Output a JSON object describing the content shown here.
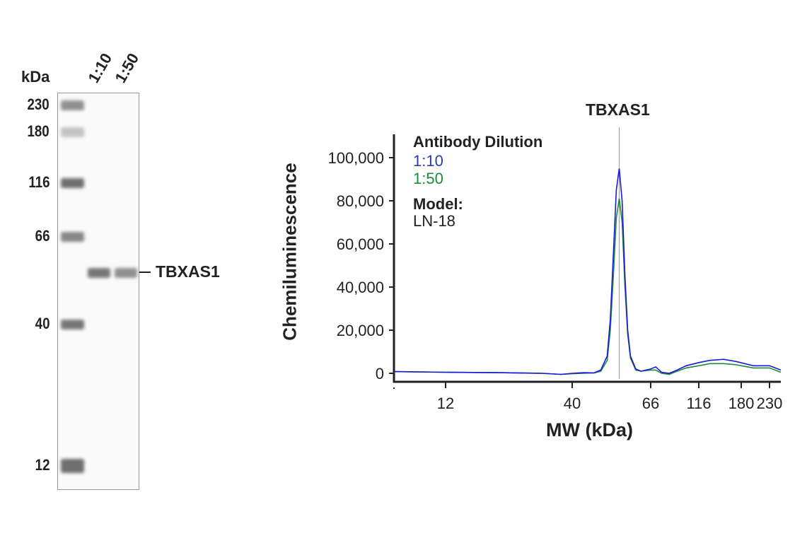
{
  "blot": {
    "unit_label": "kDa",
    "lane_labels": [
      "1:10",
      "1:50"
    ],
    "target_label": "TBXAS1",
    "markers": [
      {
        "label": "230",
        "kda": 230,
        "intensity": 0.65
      },
      {
        "label": "180",
        "kda": 180,
        "intensity": 0.35
      },
      {
        "label": "116",
        "kda": 116,
        "intensity": 0.85
      },
      {
        "label": "66",
        "kda": 66,
        "intensity": 0.7
      },
      {
        "label": "40",
        "kda": 40,
        "intensity": 0.8
      },
      {
        "label": "12",
        "kda": 12,
        "intensity": 0.85
      }
    ],
    "target_band_intensity": [
      0.8,
      0.65
    ]
  },
  "chart_data": {
    "type": "line",
    "title": "TBXAS1",
    "xlabel": "MW (kDa)",
    "ylabel": "Chemiluminescence",
    "x_scale": "log",
    "xlim": [
      7.3,
      254
    ],
    "ylim": [
      -1000,
      110000
    ],
    "x_ticks": [
      {
        "value": 12,
        "label": "12"
      },
      {
        "value": 40,
        "label": "40"
      },
      {
        "value": 66,
        "label": "66"
      },
      {
        "value": 116,
        "label": "116"
      },
      {
        "value": 180,
        "label": "180"
      },
      {
        "value": 230,
        "label": "230"
      }
    ],
    "y_ticks": [
      {
        "value": 0,
        "label": "0"
      },
      {
        "value": 20000,
        "label": "20,000"
      },
      {
        "value": 40000,
        "label": "40,000"
      },
      {
        "value": 60000,
        "label": "60,000"
      },
      {
        "value": 80000,
        "label": "80,000"
      },
      {
        "value": 100000,
        "label": "100,000"
      }
    ],
    "marker_line_kda": 54,
    "grid": false,
    "legend": {
      "title": "Antibody Dilution",
      "model_title": "Model:",
      "model_value": "LN-18",
      "placement": "top-left"
    },
    "series": [
      {
        "name": "1:10",
        "color": "#1a1adb",
        "label_color": "#2b3f9e",
        "points": [
          [
            7.3,
            800
          ],
          [
            12,
            500
          ],
          [
            20,
            300
          ],
          [
            30,
            0
          ],
          [
            36,
            -500
          ],
          [
            40,
            0
          ],
          [
            43,
            300
          ],
          [
            46,
            200
          ],
          [
            48,
            1500
          ],
          [
            50,
            8000
          ],
          [
            51,
            25000
          ],
          [
            52,
            55000
          ],
          [
            53,
            85000
          ],
          [
            54,
            95000
          ],
          [
            55,
            80000
          ],
          [
            56,
            45000
          ],
          [
            57,
            20000
          ],
          [
            58,
            8000
          ],
          [
            60,
            2000
          ],
          [
            62,
            1000
          ],
          [
            66,
            2000
          ],
          [
            70,
            3000
          ],
          [
            75,
            500
          ],
          [
            82,
            0
          ],
          [
            90,
            1500
          ],
          [
            100,
            3500
          ],
          [
            116,
            5000
          ],
          [
            130,
            6000
          ],
          [
            150,
            6500
          ],
          [
            170,
            5500
          ],
          [
            200,
            3500
          ],
          [
            230,
            3500
          ],
          [
            254,
            1500
          ]
        ]
      },
      {
        "name": "1:50",
        "color": "#1f8a3a",
        "label_color": "#1f8a3a",
        "points": [
          [
            7.3,
            800
          ],
          [
            12,
            500
          ],
          [
            20,
            300
          ],
          [
            30,
            0
          ],
          [
            36,
            -500
          ],
          [
            40,
            -200
          ],
          [
            43,
            0
          ],
          [
            46,
            200
          ],
          [
            48,
            1000
          ],
          [
            50,
            6000
          ],
          [
            51,
            20000
          ],
          [
            52,
            45000
          ],
          [
            53,
            72000
          ],
          [
            54,
            81000
          ],
          [
            55,
            70000
          ],
          [
            56,
            40000
          ],
          [
            57,
            18000
          ],
          [
            58,
            7000
          ],
          [
            60,
            1500
          ],
          [
            62,
            1000
          ],
          [
            66,
            1500
          ],
          [
            70,
            1500
          ],
          [
            75,
            0
          ],
          [
            82,
            -500
          ],
          [
            90,
            1000
          ],
          [
            100,
            2500
          ],
          [
            116,
            3500
          ],
          [
            130,
            4500
          ],
          [
            150,
            4500
          ],
          [
            170,
            4000
          ],
          [
            200,
            2500
          ],
          [
            230,
            2500
          ],
          [
            254,
            500
          ]
        ]
      }
    ]
  }
}
